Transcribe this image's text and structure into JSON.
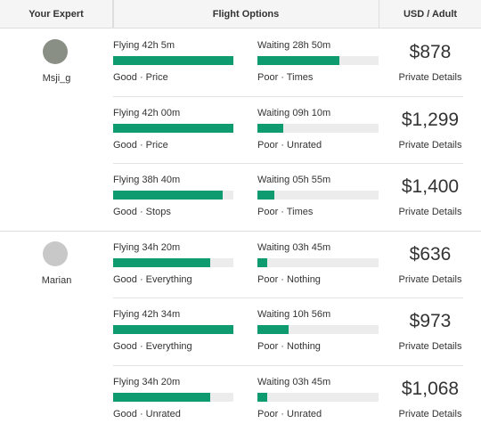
{
  "header": {
    "expert": "Your Expert",
    "options": "Flight Options",
    "price": "USD / Adult"
  },
  "experts": [
    {
      "name": "Msji_g",
      "options": [
        {
          "flying": "Flying 42h 5m",
          "flying_fill": 100,
          "flying_note": "Good · Price",
          "waiting": "Waiting 28h 50m",
          "waiting_fill": 68,
          "waiting_note": "Poor · Times",
          "price": "$878",
          "link": "Private Details"
        },
        {
          "flying": "Flying 42h 00m",
          "flying_fill": 100,
          "flying_note": "Good · Price",
          "waiting": "Waiting 09h 10m",
          "waiting_fill": 21,
          "waiting_note": "Poor · Unrated",
          "price": "$1,299",
          "link": "Private Details"
        },
        {
          "flying": "Flying 38h 40m",
          "flying_fill": 91,
          "flying_note": "Good · Stops",
          "waiting": "Waiting 05h 55m",
          "waiting_fill": 14,
          "waiting_note": "Poor · Times",
          "price": "$1,400",
          "link": "Private Details"
        }
      ]
    },
    {
      "name": "Marian",
      "options": [
        {
          "flying": "Flying 34h 20m",
          "flying_fill": 81,
          "flying_note": "Good · Everything",
          "waiting": "Waiting 03h 45m",
          "waiting_fill": 8,
          "waiting_note": "Poor · Nothing",
          "price": "$636",
          "link": "Private Details"
        },
        {
          "flying": "Flying 42h 34m",
          "flying_fill": 100,
          "flying_note": "Good · Everything",
          "waiting": "Waiting 10h 56m",
          "waiting_fill": 26,
          "waiting_note": "Poor · Nothing",
          "price": "$973",
          "link": "Private Details"
        },
        {
          "flying": "Flying 34h 20m",
          "flying_fill": 81,
          "flying_note": "Good · Unrated",
          "waiting": "Waiting 03h 45m",
          "waiting_fill": 8,
          "waiting_note": "Poor · Unrated",
          "price": "$1,068",
          "link": "Private Details"
        }
      ]
    }
  ]
}
